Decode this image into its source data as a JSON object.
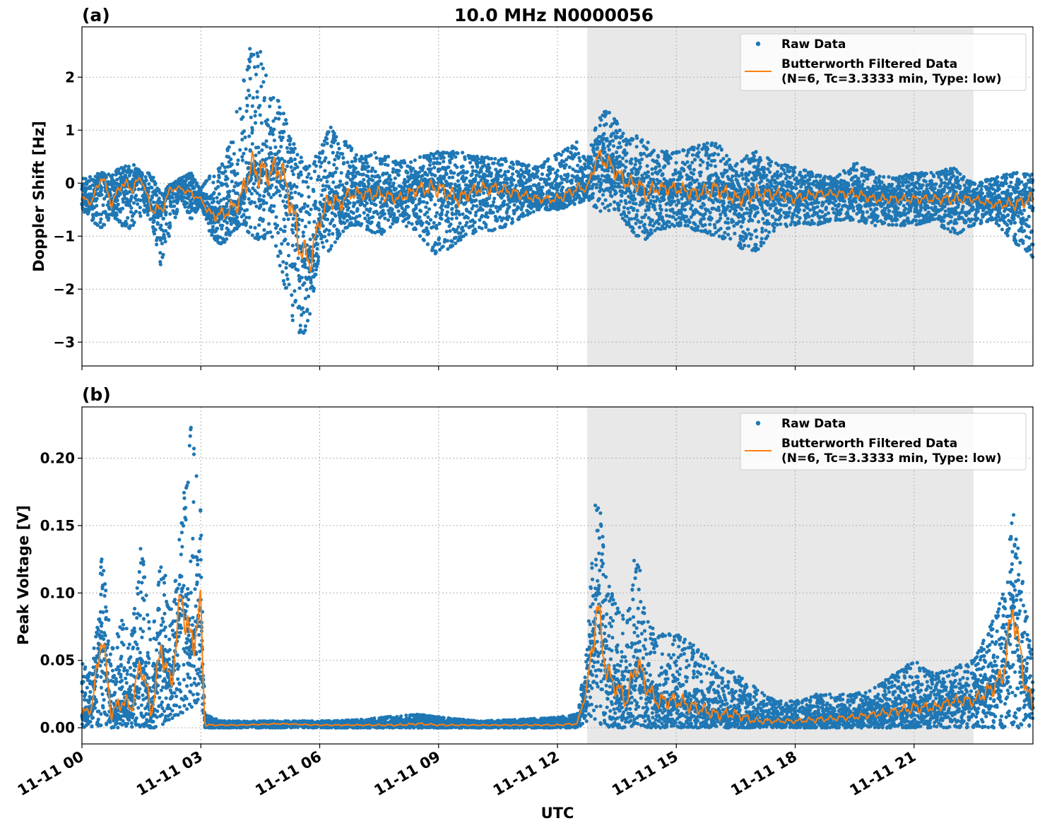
{
  "figure": {
    "title": "10.0 MHz N0000056",
    "xlabel": "UTC"
  },
  "legend": {
    "raw": "Raw Data",
    "filtered_line1": "Butterworth Filtered Data",
    "filtered_line2": "(N=6, Tc=3.3333 min, Type: low)"
  },
  "colors": {
    "raw": "#1f77b4",
    "filtered": "#ff7f0e",
    "shade": "#e8e8e8",
    "grid": "#b0b0b0"
  },
  "chart_data": [
    {
      "type": "scatter",
      "panel_label": "(a)",
      "title": "10.0 MHz N0000056",
      "ylabel": "Doppler Shift [Hz]",
      "xlabel": "",
      "xlim": [
        0,
        24
      ],
      "ylim": [
        -3.45,
        2.95
      ],
      "yticks": [
        -3,
        -2,
        -1,
        0,
        1,
        2
      ],
      "ytick_labels": [
        "−3",
        "−2",
        "−1",
        "0",
        "1",
        "2"
      ],
      "grid": true,
      "legend_position": "top-right",
      "shaded_region_hours": [
        12.75,
        22.5
      ],
      "series": [
        {
          "name": "Raw Data",
          "kind": "points",
          "x": [
            0.0,
            0.25,
            0.5,
            0.75,
            1.0,
            1.25,
            1.5,
            1.75,
            2.0,
            2.25,
            2.5,
            2.75,
            3.0,
            3.25,
            3.5,
            3.75,
            4.0,
            4.25,
            4.5,
            4.75,
            5.0,
            5.25,
            5.5,
            5.75,
            6.0,
            6.25,
            6.5,
            6.75,
            7.0,
            7.5,
            8.0,
            8.5,
            9.0,
            9.5,
            10.0,
            10.5,
            11.0,
            11.5,
            12.0,
            12.5,
            12.75,
            13.0,
            13.25,
            13.5,
            13.75,
            14.0,
            14.25,
            14.5,
            15.0,
            15.5,
            16.0,
            16.5,
            17.0,
            17.5,
            18.0,
            18.5,
            19.0,
            19.5,
            20.0,
            20.5,
            21.0,
            21.5,
            22.0,
            22.5,
            23.0,
            23.5,
            24.0
          ],
          "upper": [
            0.1,
            0.15,
            0.2,
            0.2,
            0.3,
            0.4,
            0.2,
            0.2,
            -0.2,
            0.0,
            0.1,
            0.2,
            -0.1,
            0.2,
            0.3,
            0.8,
            1.7,
            2.6,
            2.5,
            1.7,
            1.6,
            0.9,
            0.5,
            0.4,
            0.6,
            1.1,
            0.8,
            0.8,
            0.5,
            0.6,
            0.4,
            0.5,
            0.6,
            0.6,
            0.5,
            0.5,
            0.4,
            0.3,
            0.6,
            0.8,
            0.4,
            1.2,
            1.4,
            1.2,
            0.8,
            0.9,
            0.8,
            0.6,
            0.6,
            0.7,
            0.8,
            0.4,
            0.6,
            0.4,
            0.3,
            0.2,
            0.1,
            0.4,
            0.2,
            0.1,
            0.2,
            0.2,
            0.3,
            0.0,
            0.1,
            0.2,
            0.2
          ],
          "lower": [
            -0.5,
            -0.7,
            -0.9,
            -0.6,
            -0.8,
            -0.9,
            -0.6,
            -0.7,
            -1.6,
            -0.9,
            -0.3,
            -0.7,
            -0.4,
            -1.0,
            -1.2,
            -1.0,
            -0.8,
            -1.0,
            -1.1,
            -1.0,
            -1.6,
            -2.5,
            -3.1,
            -2.5,
            -1.3,
            -1.3,
            -1.0,
            -0.8,
            -0.8,
            -1.0,
            -0.7,
            -1.0,
            -1.4,
            -1.1,
            -0.9,
            -0.9,
            -0.7,
            -0.5,
            -0.5,
            -0.4,
            -0.3,
            -0.5,
            -0.6,
            -0.5,
            -0.8,
            -1.0,
            -1.1,
            -0.9,
            -0.8,
            -0.9,
            -1.0,
            -1.2,
            -1.3,
            -0.9,
            -0.8,
            -0.8,
            -0.7,
            -0.7,
            -0.8,
            -0.8,
            -0.8,
            -0.7,
            -1.0,
            -0.8,
            -0.7,
            -1.1,
            -1.4
          ]
        },
        {
          "name": "Butterworth Filtered Data",
          "kind": "line",
          "x": [
            0.0,
            0.25,
            0.5,
            0.75,
            1.0,
            1.25,
            1.5,
            1.75,
            2.0,
            2.25,
            2.5,
            2.75,
            3.0,
            3.25,
            3.5,
            3.75,
            4.0,
            4.25,
            4.5,
            4.75,
            5.0,
            5.25,
            5.5,
            5.75,
            6.0,
            6.25,
            6.5,
            6.75,
            7.0,
            7.5,
            8.0,
            8.5,
            9.0,
            9.5,
            10.0,
            10.5,
            11.0,
            11.5,
            12.0,
            12.5,
            12.75,
            13.0,
            13.25,
            13.5,
            13.75,
            14.0,
            14.25,
            14.5,
            15.0,
            15.5,
            16.0,
            16.5,
            17.0,
            17.5,
            18.0,
            18.5,
            19.0,
            19.5,
            20.0,
            20.5,
            21.0,
            21.5,
            22.0,
            22.5,
            23.0,
            23.5,
            24.0
          ],
          "y": [
            -0.3,
            -0.35,
            0.15,
            -0.4,
            0.0,
            -0.1,
            0.1,
            -0.5,
            -0.5,
            -0.1,
            -0.1,
            -0.2,
            -0.3,
            -0.6,
            -0.6,
            -0.5,
            -0.3,
            0.3,
            0.2,
            0.2,
            0.3,
            -0.3,
            -1.2,
            -1.5,
            -0.7,
            -0.3,
            -0.4,
            -0.2,
            -0.2,
            -0.2,
            -0.3,
            -0.1,
            -0.1,
            -0.3,
            -0.1,
            -0.1,
            -0.2,
            -0.3,
            -0.3,
            -0.1,
            -0.1,
            0.5,
            0.4,
            0.2,
            0.0,
            0.0,
            -0.2,
            -0.1,
            -0.1,
            -0.2,
            -0.1,
            -0.3,
            -0.2,
            -0.2,
            -0.3,
            -0.2,
            -0.2,
            -0.2,
            -0.3,
            -0.3,
            -0.3,
            -0.3,
            -0.3,
            -0.3,
            -0.4,
            -0.4,
            -0.3
          ]
        }
      ]
    },
    {
      "type": "scatter",
      "panel_label": "(b)",
      "ylabel": "Peak Voltage [V]",
      "xlabel": "UTC",
      "xlim": [
        0,
        24
      ],
      "ylim": [
        -0.012,
        0.238
      ],
      "yticks": [
        0.0,
        0.05,
        0.1,
        0.15,
        0.2
      ],
      "ytick_labels": [
        "0.00",
        "0.05",
        "0.10",
        "0.15",
        "0.20"
      ],
      "xticks": [
        0,
        3,
        6,
        9,
        12,
        15,
        18,
        21
      ],
      "xtick_labels": [
        "11-11 00",
        "11-11 03",
        "11-11 06",
        "11-11 09",
        "11-11 12",
        "11-11 15",
        "11-11 18",
        "11-11 21"
      ],
      "grid": true,
      "legend_position": "top-right",
      "shaded_region_hours": [
        12.75,
        22.5
      ],
      "series": [
        {
          "name": "Raw Data",
          "kind": "points",
          "x": [
            0.0,
            0.25,
            0.5,
            0.75,
            1.0,
            1.25,
            1.5,
            1.75,
            2.0,
            2.25,
            2.5,
            2.75,
            3.0,
            3.1,
            3.5,
            4.0,
            5.0,
            6.0,
            7.0,
            8.0,
            8.5,
            9.0,
            10.0,
            11.0,
            12.0,
            12.5,
            12.75,
            13.0,
            13.25,
            13.5,
            13.75,
            14.0,
            14.25,
            14.5,
            15.0,
            15.5,
            16.0,
            16.5,
            17.0,
            17.5,
            18.0,
            18.5,
            19.0,
            19.5,
            20.0,
            20.5,
            21.0,
            21.5,
            22.0,
            22.5,
            23.0,
            23.25,
            23.5,
            23.75,
            24.0
          ],
          "upper": [
            0.05,
            0.04,
            0.13,
            0.06,
            0.08,
            0.07,
            0.14,
            0.06,
            0.13,
            0.09,
            0.15,
            0.23,
            0.16,
            0.01,
            0.005,
            0.005,
            0.005,
            0.005,
            0.006,
            0.009,
            0.01,
            0.008,
            0.005,
            0.006,
            0.008,
            0.01,
            0.06,
            0.19,
            0.11,
            0.09,
            0.08,
            0.14,
            0.08,
            0.07,
            0.07,
            0.06,
            0.05,
            0.04,
            0.03,
            0.02,
            0.02,
            0.025,
            0.025,
            0.025,
            0.03,
            0.04,
            0.05,
            0.04,
            0.045,
            0.05,
            0.08,
            0.1,
            0.165,
            0.11,
            0.05
          ],
          "lower": [
            0.0,
            0.0,
            0.0,
            0.0,
            0.0,
            0.0,
            0.0,
            0.0,
            0.0,
            0.005,
            0.01,
            0.015,
            0.02,
            0.0,
            0.0,
            0.0,
            0.0,
            0.0,
            0.0,
            0.0,
            0.0,
            0.0,
            0.0,
            0.0,
            0.0,
            0.0,
            0.005,
            0.0,
            0.0,
            0.0,
            0.0,
            0.0,
            0.0,
            0.0,
            0.0,
            0.0,
            0.0,
            0.0,
            0.0,
            0.0,
            0.0,
            0.0,
            0.0,
            0.0,
            0.0,
            0.0,
            0.0,
            0.0,
            0.0,
            0.0,
            0.0,
            0.0,
            0.0,
            0.0,
            0.0
          ]
        },
        {
          "name": "Butterworth Filtered Data",
          "kind": "line",
          "x": [
            0.0,
            0.25,
            0.5,
            0.75,
            1.0,
            1.25,
            1.5,
            1.75,
            2.0,
            2.25,
            2.5,
            2.75,
            3.0,
            3.1,
            3.5,
            4.0,
            5.0,
            6.0,
            7.0,
            8.0,
            8.5,
            9.0,
            10.0,
            11.0,
            12.0,
            12.5,
            12.75,
            13.0,
            13.25,
            13.5,
            13.75,
            14.0,
            14.25,
            14.5,
            15.0,
            15.5,
            16.0,
            16.5,
            17.0,
            17.5,
            18.0,
            18.5,
            19.0,
            19.5,
            20.0,
            20.5,
            21.0,
            21.5,
            22.0,
            22.5,
            23.0,
            23.25,
            23.5,
            23.75,
            24.0
          ],
          "y": [
            0.01,
            0.015,
            0.07,
            0.01,
            0.02,
            0.015,
            0.05,
            0.01,
            0.06,
            0.03,
            0.1,
            0.06,
            0.09,
            0.002,
            0.002,
            0.002,
            0.003,
            0.002,
            0.002,
            0.002,
            0.003,
            0.002,
            0.002,
            0.002,
            0.002,
            0.003,
            0.03,
            0.09,
            0.04,
            0.03,
            0.02,
            0.05,
            0.03,
            0.02,
            0.02,
            0.015,
            0.01,
            0.01,
            0.005,
            0.005,
            0.005,
            0.006,
            0.007,
            0.008,
            0.01,
            0.012,
            0.015,
            0.015,
            0.02,
            0.02,
            0.03,
            0.04,
            0.09,
            0.04,
            0.015
          ]
        }
      ]
    }
  ]
}
